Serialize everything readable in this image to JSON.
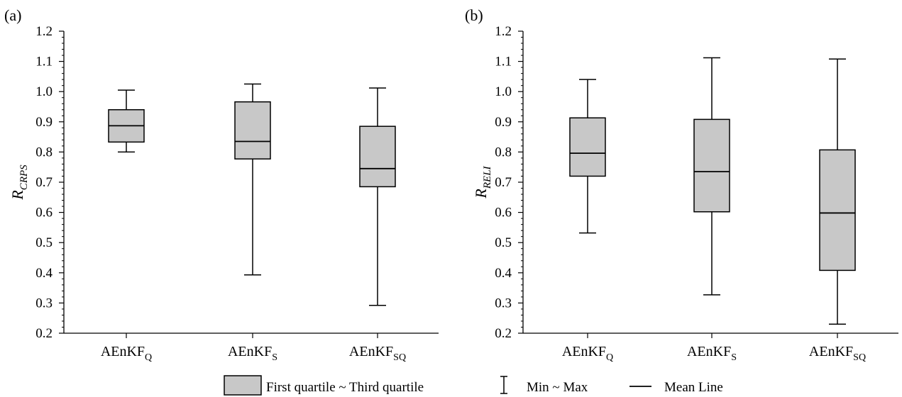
{
  "chart_data": [
    {
      "type": "box",
      "panel_label": "(a)",
      "ylabel_main": "R",
      "ylabel_sub": "CRPS",
      "ylim": [
        0.2,
        1.2
      ],
      "yticks": [
        "0.2",
        "0.3",
        "0.4",
        "0.5",
        "0.6",
        "0.7",
        "0.8",
        "0.9",
        "1.0",
        "1.1",
        "1.2"
      ],
      "categories": [
        {
          "main": "AEnKF",
          "sub": "Q"
        },
        {
          "main": "AEnKF",
          "sub": "S"
        },
        {
          "main": "AEnKF",
          "sub": "SQ"
        }
      ],
      "boxes": [
        {
          "min": 0.8,
          "q1": 0.833,
          "mean": 0.887,
          "q3": 0.94,
          "max": 1.005
        },
        {
          "min": 0.393,
          "q1": 0.777,
          "mean": 0.835,
          "q3": 0.966,
          "max": 1.025
        },
        {
          "min": 0.292,
          "q1": 0.685,
          "mean": 0.745,
          "q3": 0.885,
          "max": 1.012
        }
      ]
    },
    {
      "type": "box",
      "panel_label": "(b)",
      "ylabel_main": "R",
      "ylabel_sub": "RELI",
      "ylim": [
        0.2,
        1.2
      ],
      "yticks": [
        "0.2",
        "0.3",
        "0.4",
        "0.5",
        "0.6",
        "0.7",
        "0.8",
        "0.9",
        "1.0",
        "1.1",
        "1.2"
      ],
      "categories": [
        {
          "main": "AEnKF",
          "sub": "Q"
        },
        {
          "main": "AEnKF",
          "sub": "S"
        },
        {
          "main": "AEnKF",
          "sub": "SQ"
        }
      ],
      "boxes": [
        {
          "min": 0.532,
          "q1": 0.72,
          "mean": 0.796,
          "q3": 0.913,
          "max": 1.04
        },
        {
          "min": 0.327,
          "q1": 0.602,
          "mean": 0.735,
          "q3": 0.908,
          "max": 1.112
        },
        {
          "min": 0.23,
          "q1": 0.408,
          "mean": 0.598,
          "q3": 0.807,
          "max": 1.108
        }
      ]
    }
  ],
  "legend": {
    "box_label": "First quartile ~ Third quartile",
    "whisker_label": "Min ~ Max",
    "mean_label": "Mean Line"
  },
  "colors": {
    "box_fill": "#c8c8c8",
    "line": "#000000"
  }
}
